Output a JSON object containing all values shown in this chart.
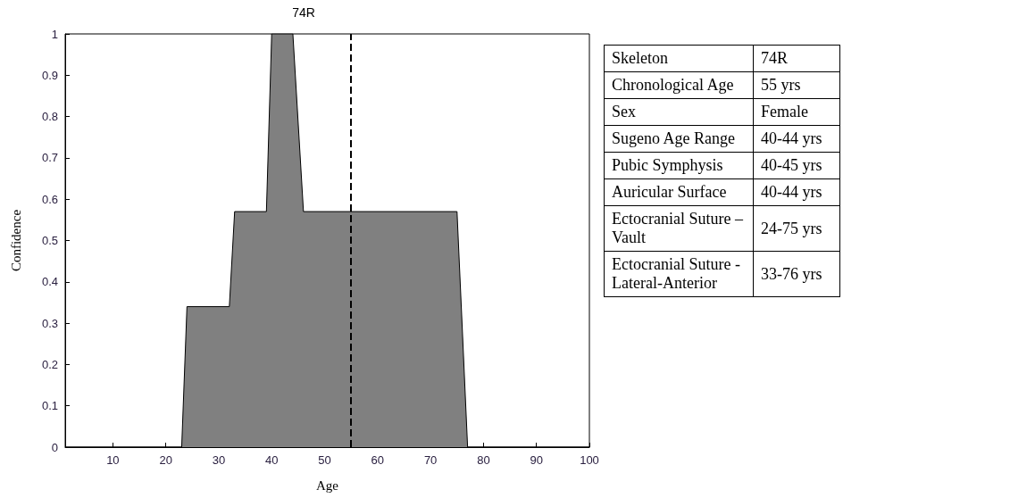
{
  "chart_data": [
    {
      "type": "area",
      "title": "74R",
      "xlabel": "Age",
      "ylabel": "Confidence",
      "series": [
        {
          "color": "#808080",
          "x": [
            1,
            23,
            24,
            32,
            33,
            39,
            40,
            44,
            46,
            75,
            77,
            100
          ],
          "values": [
            0,
            0,
            0.34,
            0.34,
            0.57,
            0.57,
            1,
            1,
            0.57,
            0.57,
            0,
            0
          ]
        }
      ],
      "xlim": [
        1,
        100
      ],
      "xticks": [
        10,
        20,
        30,
        40,
        50,
        60,
        70,
        80,
        90,
        100
      ],
      "ylim": [
        0,
        1
      ],
      "yticks": [
        0,
        0.1,
        0.2,
        0.3,
        0.4,
        0.5,
        0.6,
        0.7,
        0.8,
        0.9,
        1
      ],
      "ref_lines": [
        {
          "axis": "x",
          "value": 55,
          "color": "#000000",
          "line_style": "dashed"
        }
      ],
      "grid": false
    },
    {
      "type": "other",
      "annotations": [
        "Skeleton",
        "74R",
        "Chronological Age",
        "55 yrs",
        "Sex",
        "Female",
        "Sugeno Age Range",
        "40-44 yrs",
        "Pubic Symphysis",
        "40-45 yrs",
        "Auricular Surface",
        "40-44 yrs",
        "Ectocranial Suture – Vault",
        "24-75 yrs",
        "Ectocranial Suture - Lateral-Anterior",
        "33-76 yrs"
      ]
    }
  ]
}
